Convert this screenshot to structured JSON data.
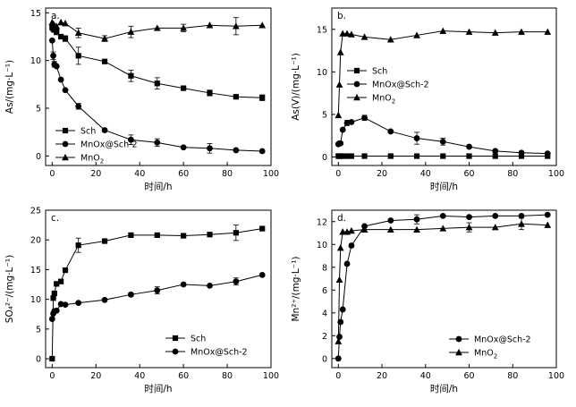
{
  "chart_data": [
    {
      "type": "line",
      "panel_label": "a.",
      "xlabel": "时间/h",
      "ylabel": "As/(mg·L⁻¹)",
      "xlim": [
        -3,
        100
      ],
      "ylim": [
        -1,
        15.5
      ],
      "xticks": [
        0,
        20,
        40,
        60,
        80,
        100
      ],
      "yticks": [
        0,
        5,
        10,
        15
      ],
      "legend_position": "bottom-left",
      "series": [
        {
          "name": "Sch",
          "marker": "square",
          "x": [
            0,
            0.5,
            1,
            2,
            4,
            6,
            12,
            24,
            36,
            48,
            60,
            72,
            84,
            96
          ],
          "y": [
            13.5,
            13.3,
            13.2,
            13.0,
            12.5,
            12.3,
            10.5,
            9.9,
            8.4,
            7.6,
            7.1,
            6.6,
            6.2,
            6.1
          ],
          "err": [
            0.3,
            0,
            0,
            0.3,
            0,
            0.3,
            0.9,
            0,
            0.6,
            0.6,
            0,
            0.3,
            0,
            0.3
          ]
        },
        {
          "name": "MnOx@Sch-2",
          "marker": "circle",
          "x": [
            0,
            0.5,
            1,
            2,
            4,
            6,
            12,
            24,
            36,
            48,
            60,
            72,
            84,
            96
          ],
          "y": [
            12.1,
            10.5,
            9.6,
            9.4,
            8.0,
            6.9,
            5.2,
            2.7,
            1.7,
            1.4,
            0.9,
            0.8,
            0.6,
            0.5
          ],
          "err": [
            0,
            0.4,
            0.3,
            0,
            0,
            0,
            0.3,
            0,
            0.5,
            0.4,
            0,
            0.5,
            0,
            0
          ]
        },
        {
          "name": "MnO",
          "sub": "2",
          "marker": "triangle",
          "x": [
            0,
            0.5,
            1,
            2,
            4,
            6,
            12,
            24,
            36,
            48,
            60,
            72,
            84,
            96
          ],
          "y": [
            14.0,
            13.8,
            13.7,
            13.6,
            14.0,
            13.9,
            12.9,
            12.3,
            13.0,
            13.4,
            13.4,
            13.7,
            13.6,
            13.7
          ],
          "err": [
            0,
            0,
            0,
            0,
            0,
            0,
            0.5,
            0.3,
            0.6,
            0,
            0.4,
            0,
            0.9,
            0
          ]
        }
      ]
    },
    {
      "type": "line",
      "panel_label": "b.",
      "xlabel": "时间/h",
      "ylabel": "As(V)/(mg·L⁻¹)",
      "xlim": [
        -3,
        100
      ],
      "ylim": [
        -1,
        17.5
      ],
      "xticks": [
        0,
        20,
        40,
        60,
        80,
        100
      ],
      "yticks": [
        0,
        5,
        10,
        15
      ],
      "legend_position": "middle-left",
      "series": [
        {
          "name": "Sch",
          "marker": "square",
          "x": [
            0,
            0.5,
            1,
            2,
            4,
            6,
            12,
            24,
            36,
            48,
            60,
            72,
            84,
            96
          ],
          "y": [
            0.1,
            0.1,
            0.1,
            0.1,
            0.1,
            0.1,
            0.1,
            0.1,
            0.1,
            0.1,
            0.1,
            0.1,
            0.1,
            0.1
          ],
          "err": [
            0,
            0,
            0,
            0,
            0,
            0,
            0,
            0,
            0,
            0,
            0,
            0,
            0,
            0
          ]
        },
        {
          "name": "MnOx@Sch-2",
          "marker": "circle",
          "x": [
            0,
            0.5,
            1,
            2,
            4,
            6,
            12,
            24,
            36,
            48,
            60,
            72,
            84,
            96
          ],
          "y": [
            1.5,
            1.6,
            1.6,
            3.2,
            4.0,
            4.1,
            4.6,
            3.0,
            2.2,
            1.8,
            1.2,
            0.7,
            0.5,
            0.4
          ],
          "err": [
            0,
            0,
            0,
            0,
            0.3,
            0,
            0.3,
            0,
            0.7,
            0.4,
            0,
            0,
            0,
            0
          ]
        },
        {
          "name": "MnO",
          "sub": "2",
          "marker": "triangle",
          "x": [
            0,
            0.5,
            1,
            2,
            4,
            6,
            12,
            24,
            36,
            48,
            60,
            72,
            84,
            96
          ],
          "y": [
            4.9,
            8.5,
            12.3,
            14.5,
            14.5,
            14.4,
            14.1,
            13.8,
            14.3,
            14.8,
            14.7,
            14.6,
            14.7,
            14.7
          ],
          "err": [
            0,
            0,
            0,
            0,
            0,
            0,
            0,
            0,
            0,
            0,
            0,
            0,
            0,
            0
          ]
        }
      ]
    },
    {
      "type": "line",
      "panel_label": "c.",
      "xlabel": "时间/h",
      "ylabel": "SO₄²⁻/(mg·L⁻¹)",
      "xlim": [
        -3,
        100
      ],
      "ylim": [
        -1.5,
        25
      ],
      "xticks": [
        0,
        20,
        40,
        60,
        80,
        100
      ],
      "yticks": [
        0,
        5,
        10,
        15,
        20,
        25
      ],
      "legend_position": "bottom-left",
      "series": [
        {
          "name": "Sch",
          "marker": "square",
          "x": [
            0,
            0.5,
            1,
            2,
            4,
            6,
            12,
            24,
            36,
            48,
            60,
            72,
            84,
            96
          ],
          "y": [
            0,
            10.2,
            11.0,
            12.6,
            13.0,
            14.9,
            19.1,
            19.8,
            20.8,
            20.8,
            20.7,
            20.9,
            21.2,
            21.9
          ],
          "err": [
            0,
            0,
            0,
            0,
            0,
            0,
            1.2,
            0,
            0.3,
            0,
            0,
            0,
            1.3,
            0
          ]
        },
        {
          "name": "MnOx@Sch-2",
          "marker": "circle",
          "x": [
            0,
            0.5,
            1,
            2,
            4,
            6,
            12,
            24,
            36,
            48,
            60,
            72,
            84,
            96
          ],
          "y": [
            6.7,
            7.6,
            8.0,
            8.1,
            9.2,
            9.1,
            9.4,
            9.9,
            10.8,
            11.5,
            12.5,
            12.3,
            13.0,
            14.1
          ],
          "err": [
            0,
            0,
            0,
            0,
            0,
            0,
            0,
            0,
            0.3,
            0.6,
            0,
            0,
            0.6,
            0
          ]
        }
      ]
    },
    {
      "type": "line",
      "panel_label": "d.",
      "xlabel": "时间/h",
      "ylabel": "Mn²⁺/(mg·L⁻¹)",
      "xlim": [
        -3,
        100
      ],
      "ylim": [
        -0.8,
        13
      ],
      "xticks": [
        0,
        20,
        40,
        60,
        80,
        100
      ],
      "yticks": [
        0,
        2,
        4,
        6,
        8,
        10,
        12
      ],
      "legend_position": "bottom-right",
      "series": [
        {
          "name": "MnOx@Sch-2",
          "marker": "circle",
          "x": [
            0,
            0.5,
            1,
            2,
            4,
            6,
            12,
            24,
            36,
            48,
            60,
            72,
            84,
            96
          ],
          "y": [
            0,
            1.9,
            3.2,
            4.3,
            8.3,
            9.9,
            11.6,
            12.1,
            12.2,
            12.5,
            12.4,
            12.5,
            12.5,
            12.6
          ],
          "err": [
            0,
            0,
            0,
            0,
            0,
            0,
            0,
            0,
            0.4,
            0,
            0,
            0,
            0,
            0
          ]
        },
        {
          "name": "MnO",
          "sub": "2",
          "marker": "triangle",
          "x": [
            0,
            0.5,
            1,
            2,
            4,
            6,
            12,
            24,
            36,
            48,
            60,
            72,
            84,
            96
          ],
          "y": [
            1.5,
            6.9,
            9.7,
            11.1,
            11.1,
            11.2,
            11.3,
            11.3,
            11.3,
            11.4,
            11.5,
            11.5,
            11.8,
            11.7
          ],
          "err": [
            0,
            0,
            0,
            0,
            0,
            0,
            0,
            0,
            0,
            0,
            0.4,
            0,
            0.5,
            0
          ]
        }
      ]
    }
  ]
}
